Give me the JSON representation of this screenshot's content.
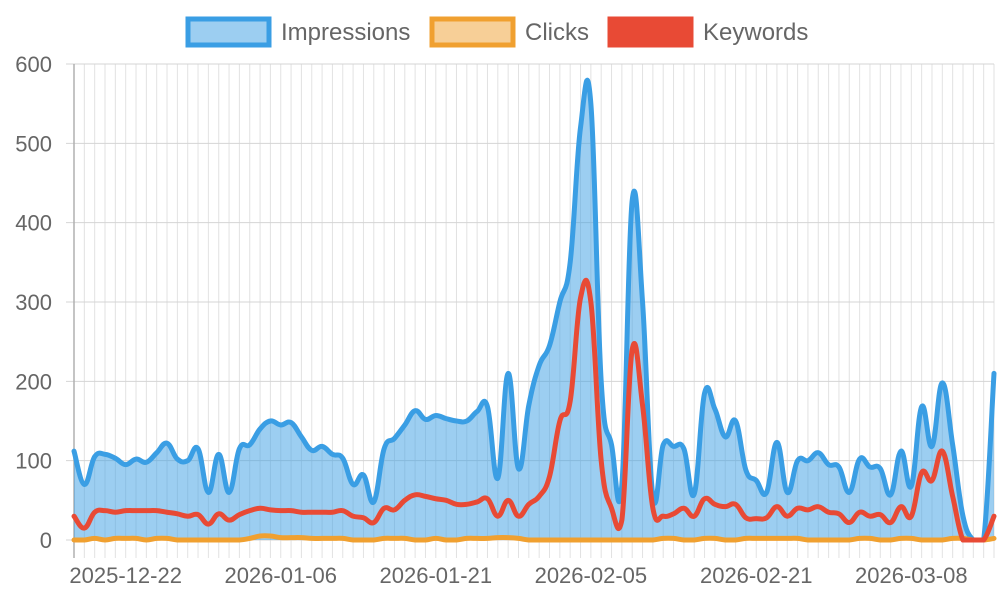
{
  "chart_data": {
    "type": "area",
    "start_date": "2025-12-17",
    "days": 90,
    "ylim": [
      0,
      600
    ],
    "y_ticks": [
      0,
      100,
      200,
      300,
      400,
      500,
      600
    ],
    "x_tick_labels": [
      "2025-12-22",
      "2026-01-06",
      "2026-01-21",
      "2026-02-05",
      "2026-02-21",
      "2026-03-08"
    ],
    "grid": true,
    "legend_position": "top",
    "series": [
      {
        "name": "Impressions",
        "color": "#3a9ee4",
        "fill": "rgba(58,158,228,0.5)",
        "filled": true,
        "values": [
          112,
          70,
          105,
          108,
          103,
          95,
          102,
          98,
          110,
          122,
          102,
          100,
          115,
          60,
          108,
          60,
          115,
          120,
          140,
          150,
          145,
          148,
          130,
          113,
          118,
          108,
          103,
          70,
          82,
          48,
          115,
          128,
          145,
          163,
          152,
          157,
          153,
          150,
          150,
          162,
          168,
          78,
          210,
          90,
          170,
          220,
          245,
          300,
          350,
          520,
          550,
          200,
          120,
          70,
          428,
          300,
          55,
          120,
          118,
          115,
          58,
          185,
          165,
          130,
          150,
          88,
          75,
          60,
          123,
          60,
          100,
          100,
          110,
          95,
          92,
          60,
          102,
          92,
          90,
          57,
          112,
          68,
          168,
          118,
          198,
          120,
          30,
          0,
          0,
          210
        ]
      },
      {
        "name": "Clicks",
        "color": "#f0a030",
        "fill": "rgba(240,160,48,0.5)",
        "filled": false,
        "values": [
          0,
          0,
          2,
          0,
          2,
          2,
          2,
          0,
          2,
          2,
          0,
          0,
          0,
          0,
          0,
          0,
          0,
          2,
          5,
          5,
          3,
          3,
          3,
          2,
          2,
          2,
          2,
          0,
          0,
          0,
          2,
          2,
          2,
          0,
          0,
          2,
          0,
          0,
          2,
          2,
          2,
          3,
          3,
          2,
          0,
          0,
          0,
          0,
          0,
          0,
          0,
          0,
          0,
          0,
          0,
          0,
          0,
          2,
          2,
          0,
          0,
          2,
          2,
          0,
          0,
          2,
          2,
          2,
          2,
          2,
          2,
          0,
          0,
          0,
          0,
          0,
          2,
          2,
          0,
          0,
          2,
          2,
          0,
          0,
          0,
          2,
          2,
          0,
          0,
          2
        ]
      },
      {
        "name": "Keywords",
        "color": "#e84a35",
        "fill": "#e84a35",
        "filled": false,
        "values": [
          30,
          15,
          35,
          37,
          35,
          37,
          37,
          37,
          37,
          35,
          33,
          30,
          32,
          20,
          33,
          25,
          32,
          37,
          40,
          38,
          37,
          37,
          35,
          35,
          35,
          35,
          37,
          30,
          28,
          22,
          40,
          38,
          50,
          57,
          55,
          52,
          50,
          45,
          45,
          48,
          52,
          30,
          50,
          30,
          45,
          55,
          80,
          150,
          175,
          305,
          300,
          100,
          40,
          25,
          240,
          170,
          40,
          30,
          33,
          40,
          30,
          52,
          45,
          42,
          45,
          28,
          27,
          28,
          42,
          30,
          40,
          38,
          42,
          35,
          33,
          22,
          35,
          30,
          32,
          22,
          42,
          30,
          85,
          75,
          112,
          55,
          0,
          0,
          0,
          30
        ]
      }
    ]
  }
}
